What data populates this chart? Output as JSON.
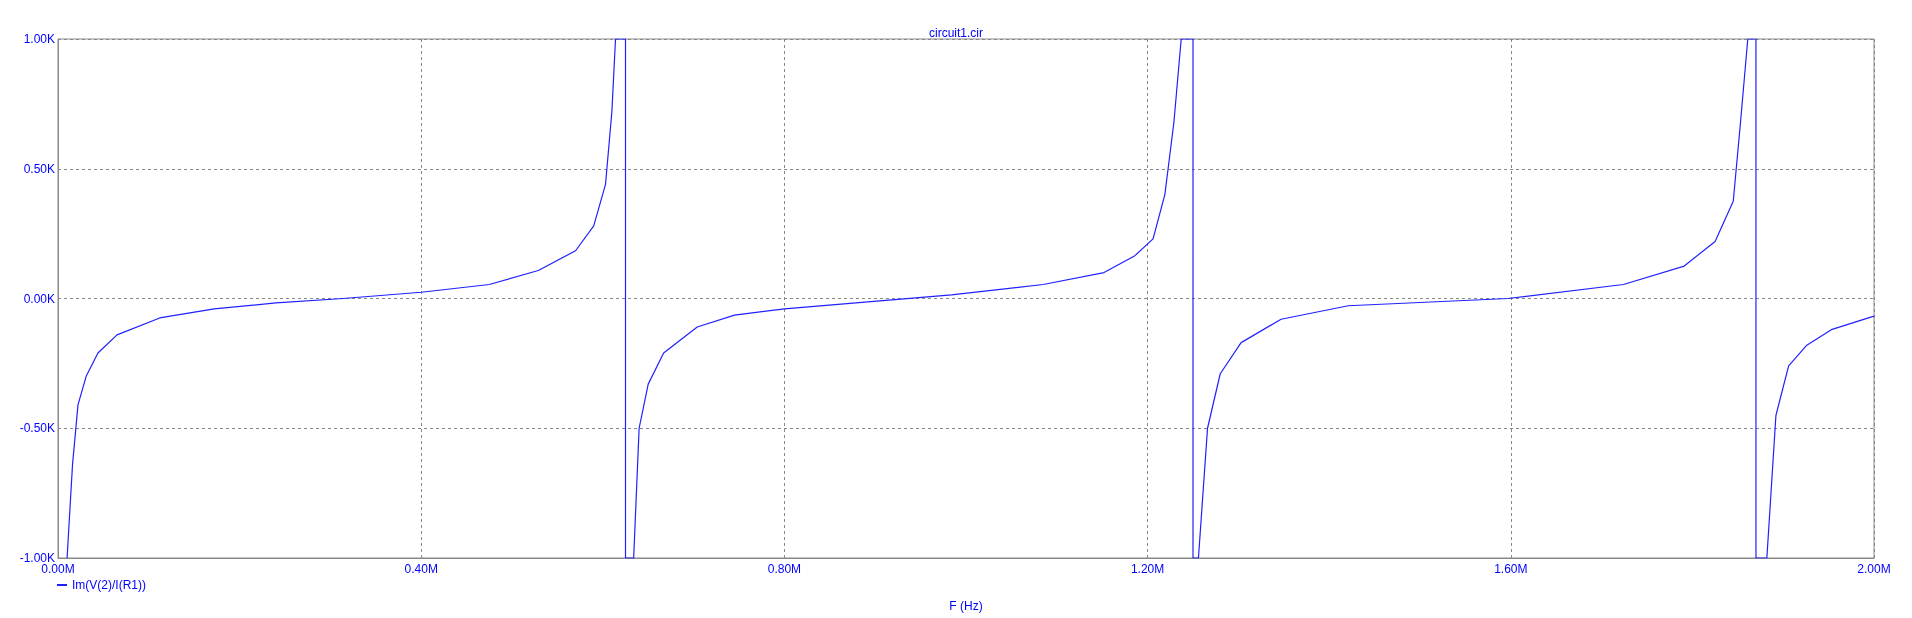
{
  "chart_data": {
    "type": "line",
    "title": "circuit1.cir",
    "xlabel": "F (Hz)",
    "series": [
      {
        "name": "Im(V(2)/I(R1))",
        "color": "#2020ff",
        "x": [
          0.01,
          0.016,
          0.022,
          0.031,
          0.044,
          0.065,
          0.112,
          0.172,
          0.24,
          0.314,
          0.4,
          0.475,
          0.529,
          0.57,
          0.59,
          0.603,
          0.61,
          0.614,
          0.625,
          0.625,
          0.634,
          0.64,
          0.65,
          0.667,
          0.704,
          0.745,
          0.8,
          0.984,
          1.085,
          1.152,
          1.186,
          1.206,
          1.219,
          1.229,
          1.237,
          1.25,
          1.25,
          1.256,
          1.266,
          1.28,
          1.303,
          1.347,
          1.421,
          1.597,
          1.724,
          1.791,
          1.825,
          1.845,
          1.853,
          1.861,
          1.87,
          1.87,
          1.882,
          1.892,
          1.906,
          1.926,
          1.953,
          2.0
        ],
        "values": [
          -1.0,
          -0.64,
          -0.41,
          -0.3,
          -0.21,
          -0.14,
          -0.075,
          -0.04,
          -0.017,
          0.0,
          0.024,
          0.054,
          0.108,
          0.184,
          0.28,
          0.44,
          0.72,
          1.0,
          1.0,
          -1.0,
          -1.0,
          -0.5,
          -0.33,
          -0.21,
          -0.11,
          -0.064,
          -0.04,
          0.014,
          0.054,
          0.1,
          0.165,
          0.23,
          0.4,
          0.68,
          1.0,
          1.0,
          -1.0,
          -1.0,
          -0.5,
          -0.29,
          -0.17,
          -0.08,
          -0.028,
          0.0,
          0.054,
          0.125,
          0.22,
          0.375,
          0.68,
          1.0,
          1.0,
          -1.0,
          -1.0,
          -0.45,
          -0.26,
          -0.18,
          -0.12,
          -0.068
        ]
      }
    ],
    "xlim": [
      0,
      2
    ],
    "xticks": [
      {
        "value": 0,
        "label": "0.00M"
      },
      {
        "value": 0.4,
        "label": "0.40M"
      },
      {
        "value": 0.8,
        "label": "0.80M"
      },
      {
        "value": 1.2,
        "label": "1.20M"
      },
      {
        "value": 1.6,
        "label": "1.60M"
      },
      {
        "value": 2,
        "label": "2.00M"
      }
    ],
    "ylim": [
      -1,
      1
    ],
    "yticks": [
      {
        "value": -1,
        "label": "-1.00K"
      },
      {
        "value": -0.5,
        "label": "-0.50K"
      },
      {
        "value": 0,
        "label": "0.00K"
      },
      {
        "value": 0.5,
        "label": "0.50K"
      },
      {
        "value": 1,
        "label": "1.00K"
      }
    ],
    "grid": true,
    "marker": "none",
    "line_style": "solid",
    "legend": "bottom left"
  }
}
